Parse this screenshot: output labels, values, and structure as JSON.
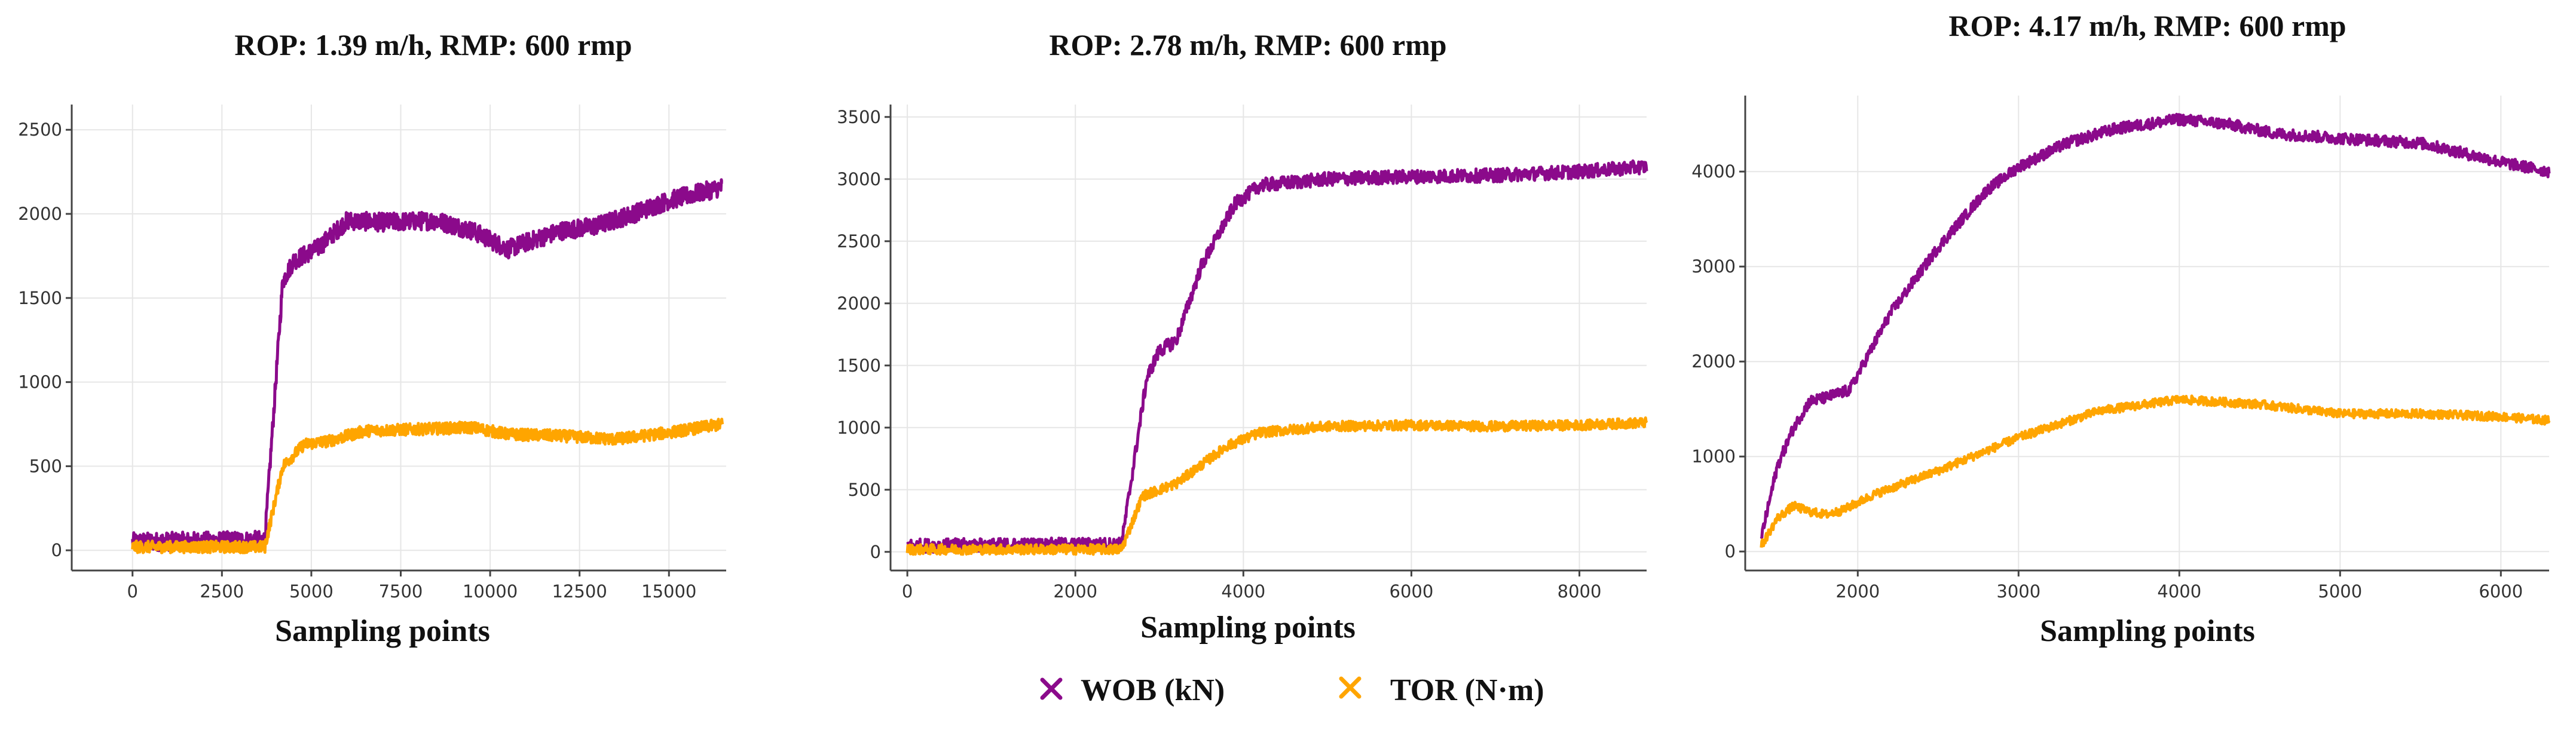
{
  "legend": {
    "items": [
      {
        "label": "WOB (kN)",
        "color": "#8b0a8b",
        "marker": "x"
      },
      {
        "label": "TOR (N·m)",
        "color": "#ffa500",
        "marker": "x"
      }
    ]
  },
  "chart_data": [
    {
      "type": "line",
      "title": "ROP: 1.39 m/h, RMP: 600 rmp",
      "xlabel": "Sampling points",
      "ylabel": "",
      "xlim": [
        -1700,
        16600
      ],
      "ylim": [
        -120,
        2650
      ],
      "xticks": [
        0,
        2500,
        5000,
        7500,
        10000,
        12500,
        15000
      ],
      "yticks": [
        0,
        500,
        1000,
        1500,
        2000,
        2500
      ],
      "series": [
        {
          "name": "WOB (kN)",
          "color": "#8b0a8b",
          "noise": 55,
          "x": [
            0,
            3700,
            4200,
            4500,
            5200,
            6000,
            7000,
            8500,
            9500,
            10500,
            11000,
            12000,
            13000,
            14000,
            15000,
            16500
          ],
          "y": [
            50,
            60,
            1600,
            1720,
            1800,
            1960,
            1950,
            1960,
            1900,
            1790,
            1830,
            1900,
            1930,
            2000,
            2080,
            2160
          ]
        },
        {
          "name": "TOR (N·m)",
          "color": "#ffa500",
          "noise": 35,
          "x": [
            0,
            3700,
            4200,
            4800,
            5500,
            6500,
            8000,
            9500,
            10500,
            12000,
            13500,
            15000,
            16500
          ],
          "y": [
            20,
            20,
            500,
            630,
            650,
            710,
            720,
            730,
            690,
            680,
            660,
            700,
            750
          ]
        }
      ]
    },
    {
      "type": "line",
      "title": "ROP: 2.78 m/h, RMP: 600 rmp",
      "xlabel": "Sampling points",
      "ylabel": "",
      "xlim": [
        -200,
        8800
      ],
      "ylim": [
        -150,
        3600
      ],
      "xticks": [
        0,
        2000,
        4000,
        6000,
        8000
      ],
      "yticks": [
        0,
        500,
        1000,
        1500,
        2000,
        2500,
        3000,
        3500
      ],
      "series": [
        {
          "name": "WOB (kN)",
          "color": "#8b0a8b",
          "noise": 55,
          "x": [
            0,
            2550,
            2850,
            3000,
            3200,
            3500,
            3900,
            4200,
            5000,
            6000,
            7000,
            8000,
            8800
          ],
          "y": [
            50,
            60,
            1400,
            1620,
            1700,
            2300,
            2800,
            2950,
            3000,
            3020,
            3030,
            3060,
            3100
          ]
        },
        {
          "name": "TOR (N·m)",
          "color": "#ffa500",
          "noise": 40,
          "x": [
            0,
            2550,
            2800,
            3200,
            3800,
            4200,
            5000,
            6000,
            7000,
            8000,
            8800
          ],
          "y": [
            20,
            20,
            450,
            550,
            850,
            960,
            1010,
            1020,
            1010,
            1020,
            1040
          ]
        }
      ]
    },
    {
      "type": "line",
      "title": "ROP: 4.17 m/h, RMP: 600 rmp",
      "xlabel": "Sampling points",
      "ylabel": "",
      "xlim": [
        1300,
        6300
      ],
      "ylim": [
        -200,
        4800
      ],
      "xticks": [
        2000,
        3000,
        4000,
        5000,
        6000
      ],
      "yticks": [
        0,
        1000,
        2000,
        3000,
        4000
      ],
      "series": [
        {
          "name": "WOB (kN)",
          "color": "#8b0a8b",
          "noise": 60,
          "x": [
            1400,
            1500,
            1600,
            1700,
            1800,
            1950,
            2200,
            2500,
            2800,
            3000,
            3300,
            3600,
            4000,
            4300,
            4600,
            5000,
            5500,
            6000,
            6300
          ],
          "y": [
            150,
            900,
            1300,
            1580,
            1620,
            1700,
            2500,
            3200,
            3800,
            4050,
            4300,
            4450,
            4550,
            4500,
            4400,
            4350,
            4300,
            4100,
            4000
          ]
        },
        {
          "name": "TOR (N·m)",
          "color": "#ffa500",
          "noise": 45,
          "x": [
            1400,
            1500,
            1600,
            1700,
            1800,
            1900,
            2100,
            2500,
            3000,
            3500,
            4000,
            4500,
            5000,
            5500,
            6000,
            6300
          ],
          "y": [
            60,
            350,
            480,
            420,
            390,
            430,
            600,
            850,
            1200,
            1480,
            1600,
            1550,
            1450,
            1450,
            1420,
            1380
          ]
        }
      ]
    }
  ]
}
